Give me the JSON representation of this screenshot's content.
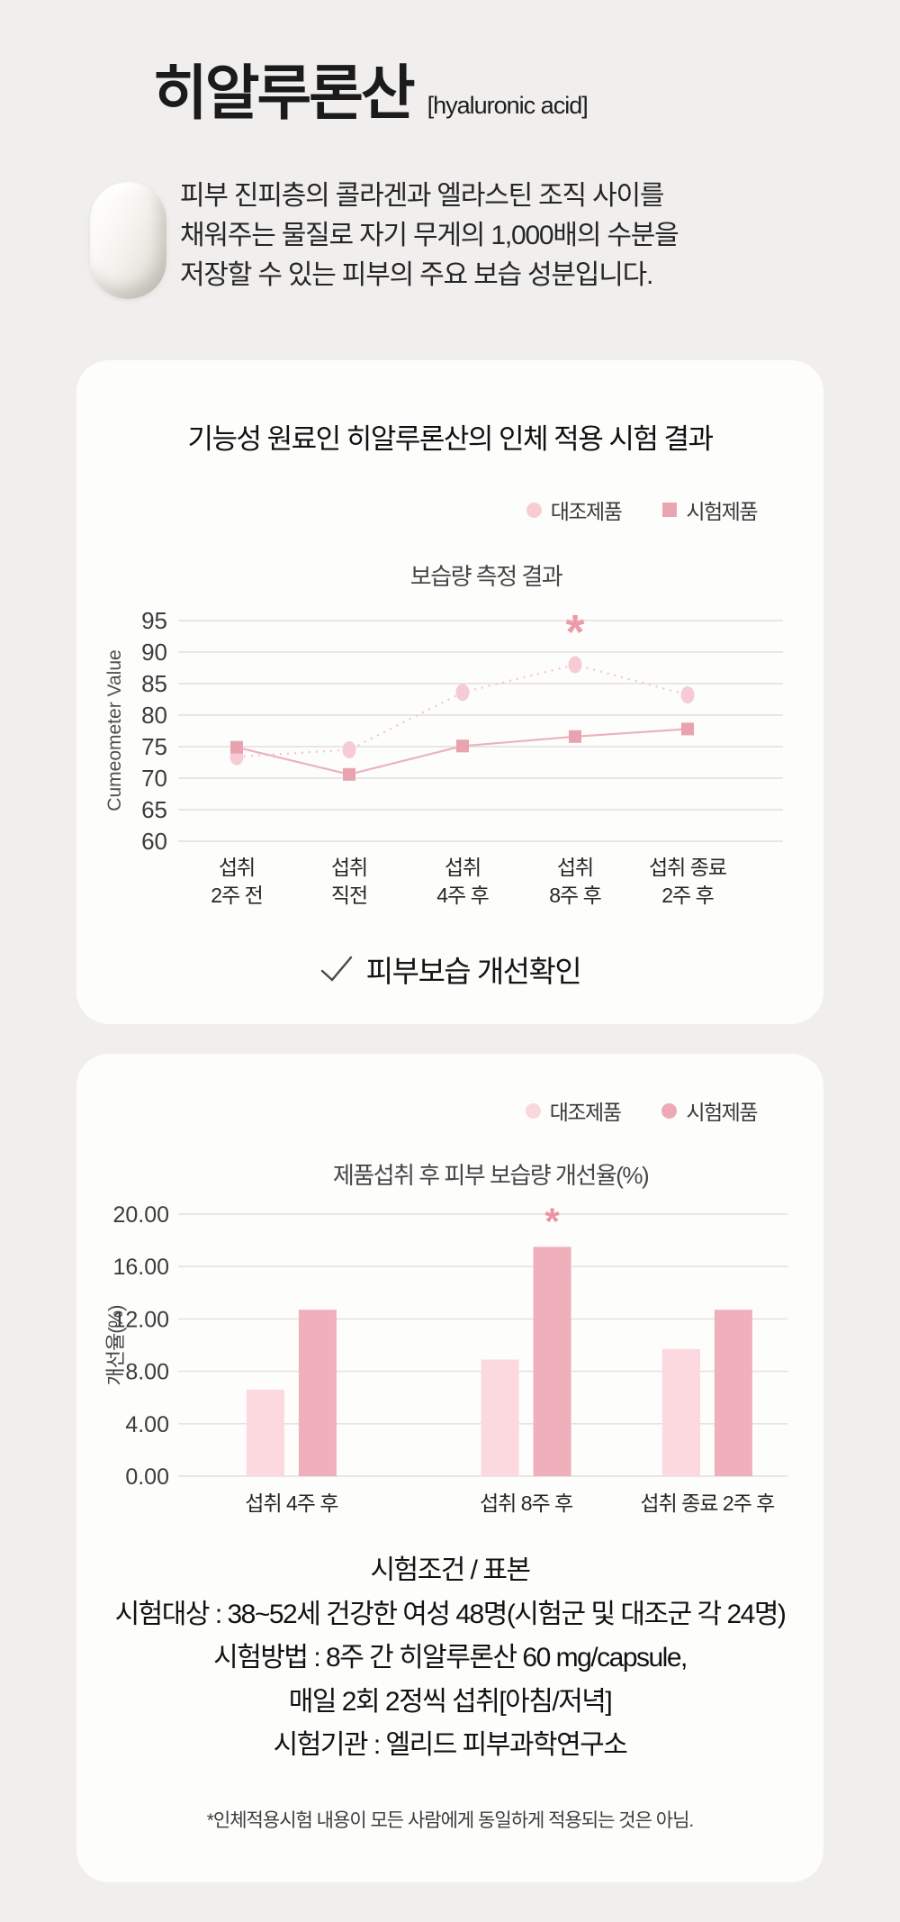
{
  "page": {
    "background": "#f0efee",
    "title": "히알루론산",
    "title_en": "[hyaluronic acid]",
    "description_lines": [
      "피부 진피층의 콜라겐과 엘라스틴 조직 사이를",
      "채워주는 물질로 자기 무게의 1,000배의 수분을",
      "저장할 수 있는 피부의 주요 보습 성분입니다."
    ]
  },
  "card1": {
    "title": "기능성 원료인 히알루론산의 인체 적용 시험 결과",
    "legend": [
      {
        "label": "대조제품",
        "shape": "circle",
        "color": "#f7ccd3"
      },
      {
        "label": "시험제품",
        "shape": "square",
        "color": "#e9a6b1"
      }
    ],
    "check_text": "피부보습 개선확인"
  },
  "card2": {
    "legend": [
      {
        "label": "대조제품",
        "shape": "circle",
        "color": "#f9d8dd"
      },
      {
        "label": "시험제품",
        "shape": "circle",
        "color": "#eda9b6"
      }
    ],
    "conditions_lines": [
      "시험조건 / 표본",
      "시험대상 : 38~52세 건강한 여성 48명(시험군 및 대조군 각 24명)",
      "시험방법 : 8주 간 히알루론산 60 mg/capsule,",
      "매일 2회 2정씩 섭취[아침/저녁]",
      "시험기관 : 엘리드 피부과학연구소"
    ],
    "footnote": "*인체적용시험 내용이 모든 사람에게 동일하게 적용되는 것은 아님."
  },
  "chart_data": [
    {
      "type": "line",
      "title": "보습량 측정 결과",
      "ylabel": "Cumeometer Value",
      "ylim": [
        60,
        95
      ],
      "yticks": [
        95,
        90,
        85,
        80,
        75,
        70,
        65,
        60
      ],
      "grid": true,
      "legend_position": "top-right",
      "categories": [
        [
          "섭취",
          "2주 전"
        ],
        [
          "섭취",
          "직전"
        ],
        [
          "섭취",
          "4주 후"
        ],
        [
          "섭취",
          "8주 후"
        ],
        [
          "섭취 종료",
          "2주 후"
        ]
      ],
      "series": [
        {
          "name": "대조제품",
          "values": [
            73.4,
            74.5,
            83.6,
            88.0,
            83.2
          ],
          "style": "dotted",
          "marker": "circle",
          "color": "#f6cbd3",
          "line_color": "#f3c5cd"
        },
        {
          "name": "시험제품",
          "values": [
            74.9,
            70.6,
            75.1,
            76.6,
            77.8
          ],
          "style": "solid",
          "marker": "square",
          "color": "#e8a3ae",
          "line_color": "#eab3bc"
        }
      ],
      "annotation": {
        "text": "*",
        "series": 0,
        "point": 3,
        "color": "#ee9aa9"
      }
    },
    {
      "type": "bar",
      "title": "제품섭취 후 피부 보습량 개선율(%)",
      "ylabel": "개선율(%)",
      "ylim": [
        0,
        20
      ],
      "yticks": [
        "20.00",
        "16.00",
        "12.00",
        "8.00",
        "4.00",
        "0.00"
      ],
      "grid": true,
      "legend_position": "top-right",
      "categories": [
        "섭취 4주 후",
        "섭취 8주 후",
        "섭취 종료 2주 후"
      ],
      "series": [
        {
          "name": "대조제품",
          "values": [
            6.6,
            8.9,
            9.7
          ],
          "color": "#fbd9df"
        },
        {
          "name": "시험제품",
          "values": [
            12.7,
            17.5,
            12.7
          ],
          "color": "#efb0bb"
        }
      ],
      "annotation": {
        "text": "*",
        "series": 1,
        "point": 1,
        "color": "#ec93a3"
      }
    }
  ]
}
